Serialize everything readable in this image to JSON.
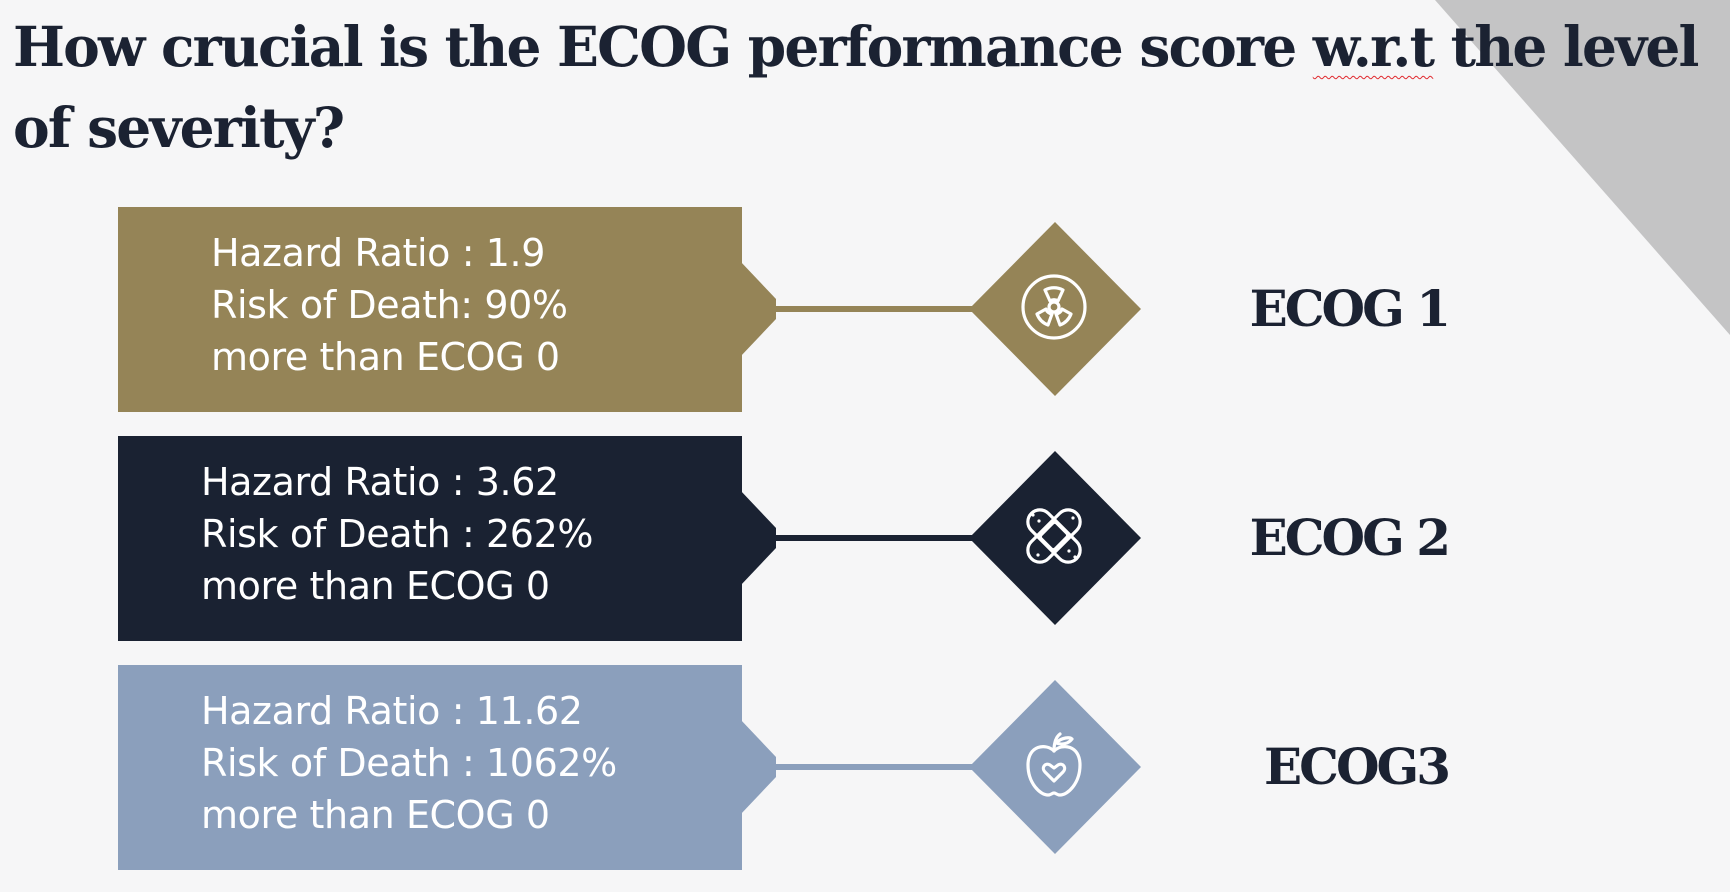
{
  "title": {
    "before": "How crucial is the ECOG performance score ",
    "flagged": "w.r.t",
    "after": " the level of severity?"
  },
  "rows": [
    {
      "lines": [
        "Hazard Ratio : 1.9",
        "Risk of Death: 90%",
        "more than ECOG 0"
      ],
      "label": "ECOG 1",
      "color": "#958457",
      "icon": "radiation-icon"
    },
    {
      "lines": [
        "Hazard Ratio : 3.62",
        "Risk of Death : 262%",
        "more than ECOG 0"
      ],
      "label": "ECOG 2",
      "color": "#1a2232",
      "icon": "bandage-icon"
    },
    {
      "lines": [
        "Hazard Ratio : 11.62",
        "Risk of Death : 1062%",
        "more than ECOG 0"
      ],
      "label": "ECOG3",
      "color": "#8b9fbc",
      "icon": "apple-heart-icon"
    }
  ],
  "colors": {
    "background": "#f6f6f7",
    "corner_accent": "#c4c4c5",
    "text_dark": "#1b2232"
  }
}
